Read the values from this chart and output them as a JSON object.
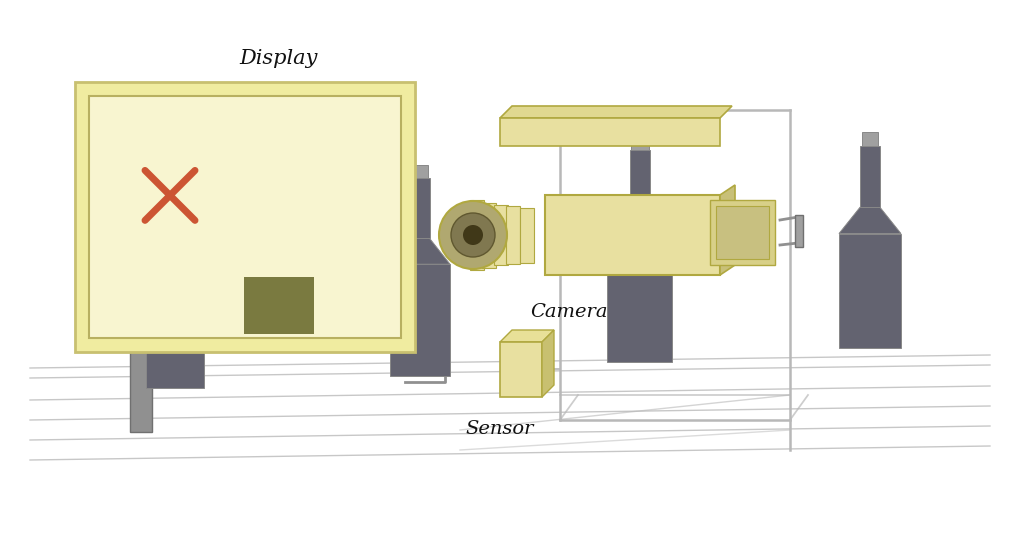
{
  "bg_color": "#ffffff",
  "display_label": "Display",
  "camera_label": "Camera",
  "sensor_label": "Sensor",
  "bottle_dark": "#636370",
  "bottle_outline": "#888888",
  "bottle_glass_outline": "#aaaaaa",
  "display_bg": "#f8f5d0",
  "display_outer_bg": "#f0eca0",
  "display_border_outer": "#c8c070",
  "display_border_inner": "#b8b060",
  "cross_color": "#cc5533",
  "liquid_color": "#7a7a40",
  "camera_body": "#e8e0a0",
  "camera_edge": "#b0a840",
  "sensor_body": "#e8e0a0",
  "sensor_edge": "#b0a840",
  "frame_color": "#b8b8b8",
  "conveyor_line": "#b0b0b0",
  "conveyor_fill": "#d8d8d8"
}
